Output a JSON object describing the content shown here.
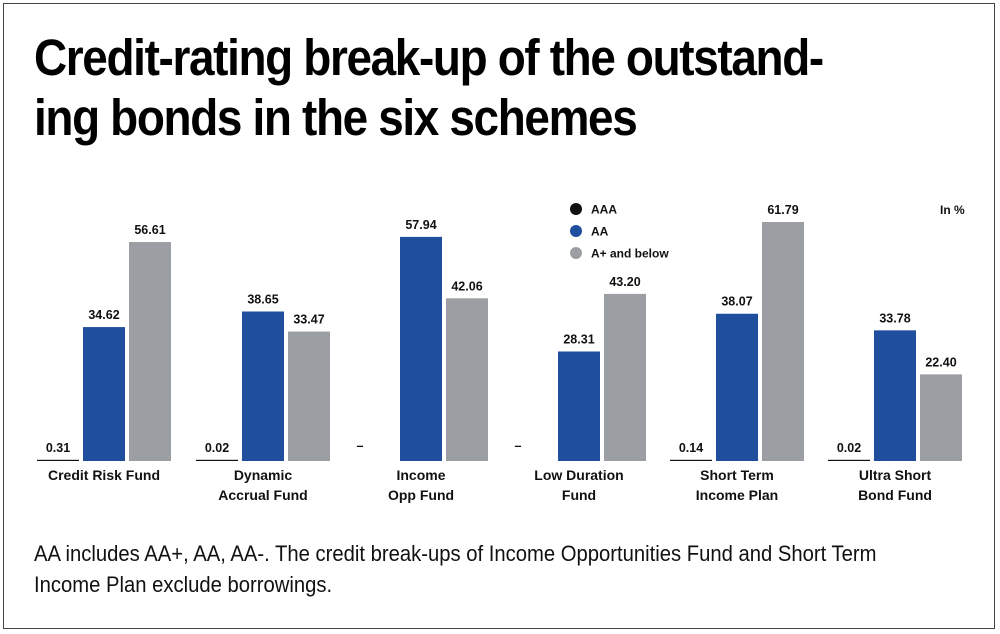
{
  "title": "Credit-rating break-up of the outstand-\ning bonds in the six schemes",
  "footnote": "AA includes AA+, AA, AA-. The credit break-ups of Income Opportunities Fund and Short Term Income Plan exclude borrowings.",
  "colors": {
    "AAA": "#111111",
    "AA": "#1f4e9e",
    "A+ and below": "#9b9ea3"
  },
  "chart_data": {
    "type": "bar",
    "unit_label": "In %",
    "categories": [
      [
        "Credit Risk Fund"
      ],
      [
        "Dynamic",
        "Accrual Fund"
      ],
      [
        "Income",
        "Opp Fund"
      ],
      [
        "Low Duration",
        "Fund"
      ],
      [
        "Short Term",
        "Income Plan"
      ],
      [
        "Ultra Short",
        "Bond Fund"
      ]
    ],
    "series": [
      {
        "name": "AAA",
        "values": [
          0.31,
          0.02,
          null,
          null,
          0.14,
          0.02
        ],
        "labels": [
          "0.31",
          "0.02",
          "–",
          "–",
          "0.14",
          "0.02"
        ]
      },
      {
        "name": "AA",
        "values": [
          34.62,
          38.65,
          57.94,
          28.31,
          38.07,
          33.78
        ],
        "labels": [
          "34.62",
          "38.65",
          "57.94",
          "28.31",
          "38.07",
          "33.78"
        ]
      },
      {
        "name": "A+ and below",
        "values": [
          56.61,
          33.47,
          42.06,
          43.2,
          61.79,
          22.4
        ],
        "labels": [
          "56.61",
          "33.47",
          "42.06",
          "43.20",
          "61.79",
          "22.40"
        ]
      }
    ],
    "ylim": [
      0,
      61.79
    ],
    "grid": false,
    "legend_position": "top-center"
  }
}
